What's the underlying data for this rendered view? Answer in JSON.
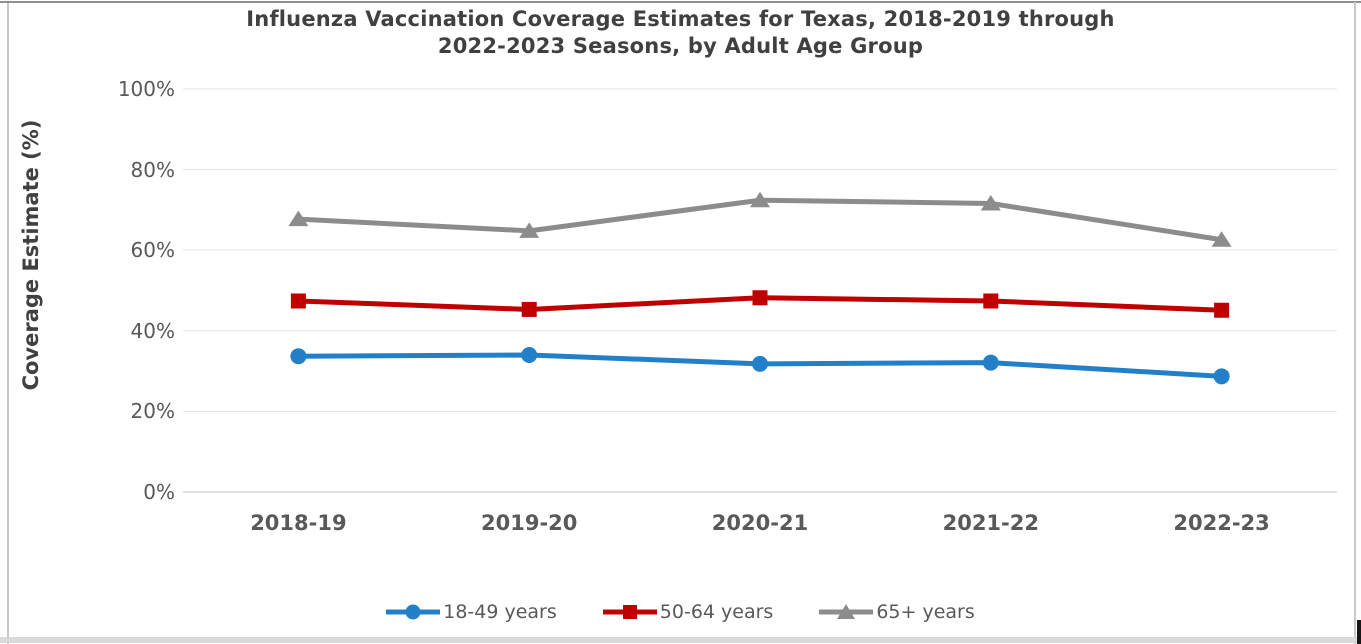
{
  "chart_data": {
    "type": "line",
    "title": "Influenza Vaccination Coverage Estimates for Texas, 2018-2019 through 2022-2023 Seasons, by Adult Age Group",
    "title_lines": [
      "Influenza Vaccination Coverage Estimates for Texas, 2018-2019 through",
      "2022-2023 Seasons, by Adult Age Group"
    ],
    "xlabel": "",
    "ylabel": "Coverage Estimate (%)",
    "categories": [
      "2018-19",
      "2019-20",
      "2020-21",
      "2021-22",
      "2022-23"
    ],
    "y_ticks": [
      {
        "label": "0%",
        "value": 0
      },
      {
        "label": "20%",
        "value": 20
      },
      {
        "label": "40%",
        "value": 40
      },
      {
        "label": "60%",
        "value": 60
      },
      {
        "label": "80%",
        "value": 80
      },
      {
        "label": "100%",
        "value": 100
      }
    ],
    "ylim": [
      0,
      100
    ],
    "grid": "horizontal",
    "legend_position": "bottom",
    "series": [
      {
        "name": "18-49 years",
        "marker": "circle",
        "color": "#2380C8",
        "values": [
          33.7,
          34.0,
          31.8,
          32.1,
          28.7
        ]
      },
      {
        "name": "50-64 years",
        "marker": "square",
        "color": "#C00000",
        "values": [
          47.4,
          45.3,
          48.2,
          47.4,
          45.1
        ]
      },
      {
        "name": "65+ years",
        "marker": "triangle",
        "color": "#8C8C8C",
        "values": [
          67.7,
          64.8,
          72.4,
          71.6,
          62.6
        ]
      }
    ]
  },
  "palette": {
    "gridline": "#E9E9E9",
    "axis_line": "#D6D6D6",
    "title_text": "#404040",
    "axis_text": "#595959"
  }
}
